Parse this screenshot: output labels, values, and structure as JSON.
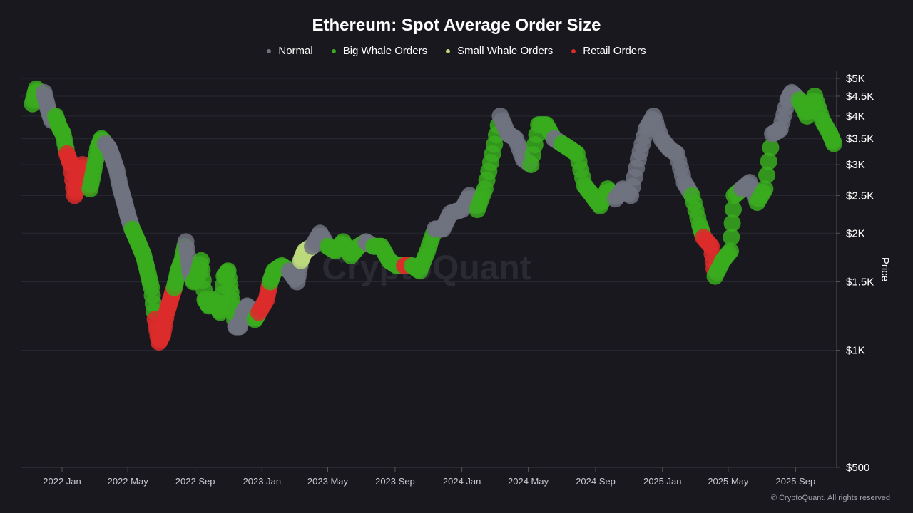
{
  "chart_data": {
    "type": "scatter",
    "title": "Ethereum: Spot Average Order Size",
    "ylabel": "Price",
    "yscale": "log",
    "ylim": [
      500,
      5000
    ],
    "y_ticks": [
      {
        "v": 5000,
        "label": "$5K"
      },
      {
        "v": 4500,
        "label": "$4.5K"
      },
      {
        "v": 4000,
        "label": "$4K"
      },
      {
        "v": 3500,
        "label": "$3.5K"
      },
      {
        "v": 3000,
        "label": "$3K"
      },
      {
        "v": 2500,
        "label": "$2.5K"
      },
      {
        "v": 2000,
        "label": "$2K"
      },
      {
        "v": 1500,
        "label": "$1.5K"
      },
      {
        "v": 1000,
        "label": "$1K"
      },
      {
        "v": 500,
        "label": "$500"
      }
    ],
    "x_ticks": [
      {
        "v": "2022-01-01",
        "label": "2022 Jan"
      },
      {
        "v": "2022-05-01",
        "label": "2022 May"
      },
      {
        "v": "2022-09-01",
        "label": "2022 Sep"
      },
      {
        "v": "2023-01-01",
        "label": "2023 Jan"
      },
      {
        "v": "2023-05-01",
        "label": "2023 May"
      },
      {
        "v": "2023-09-01",
        "label": "2023 Sep"
      },
      {
        "v": "2024-01-01",
        "label": "2024 Jan"
      },
      {
        "v": "2024-05-01",
        "label": "2024 May"
      },
      {
        "v": "2024-09-01",
        "label": "2024 Sep"
      },
      {
        "v": "2025-01-01",
        "label": "2025 Jan"
      },
      {
        "v": "2025-05-01",
        "label": "2025 May"
      },
      {
        "v": "2025-09-01",
        "label": "2025 Sep"
      }
    ],
    "grid": true,
    "legend_position": "top-center",
    "categories": {
      "N": {
        "name": "Normal",
        "color": "#70727f"
      },
      "B": {
        "name": "Big Whale Orders",
        "color": "#3aab1e"
      },
      "S": {
        "name": "Small Whale Orders",
        "color": "#bcd97c"
      },
      "R": {
        "name": "Retail Orders",
        "color": "#dc2b2b"
      }
    },
    "legend_order": [
      "N",
      "B",
      "S",
      "R"
    ],
    "points": [
      [
        "2021-11-08",
        4300,
        "B"
      ],
      [
        "2021-11-15",
        4700,
        "B"
      ],
      [
        "2021-11-22",
        4400,
        "B"
      ],
      [
        "2021-11-29",
        4600,
        "N"
      ],
      [
        "2021-12-06",
        4200,
        "N"
      ],
      [
        "2021-12-13",
        3900,
        "N"
      ],
      [
        "2021-12-20",
        4000,
        "B"
      ],
      [
        "2021-12-27",
        3750,
        "B"
      ],
      [
        "2022-01-03",
        3600,
        "B"
      ],
      [
        "2022-01-10",
        3200,
        "R"
      ],
      [
        "2022-01-17",
        3000,
        "R"
      ],
      [
        "2022-01-24",
        2500,
        "R"
      ],
      [
        "2022-01-31",
        2700,
        "R"
      ],
      [
        "2022-02-07",
        3000,
        "R"
      ],
      [
        "2022-02-14",
        2800,
        "R"
      ],
      [
        "2022-02-21",
        2600,
        "B"
      ],
      [
        "2022-02-28",
        2900,
        "B"
      ],
      [
        "2022-03-07",
        3300,
        "B"
      ],
      [
        "2022-03-14",
        3500,
        "B"
      ],
      [
        "2022-03-21",
        3400,
        "N"
      ],
      [
        "2022-03-28",
        3300,
        "N"
      ],
      [
        "2022-04-04",
        3100,
        "N"
      ],
      [
        "2022-04-11",
        2900,
        "N"
      ],
      [
        "2022-04-18",
        2600,
        "N"
      ],
      [
        "2022-04-25",
        2400,
        "N"
      ],
      [
        "2022-05-02",
        2200,
        "N"
      ],
      [
        "2022-05-09",
        2050,
        "B"
      ],
      [
        "2022-05-16",
        1950,
        "B"
      ],
      [
        "2022-05-23",
        1850,
        "B"
      ],
      [
        "2022-05-30",
        1750,
        "B"
      ],
      [
        "2022-06-06",
        1600,
        "B"
      ],
      [
        "2022-06-13",
        1450,
        "B"
      ],
      [
        "2022-06-20",
        1200,
        "R"
      ],
      [
        "2022-06-27",
        1050,
        "R"
      ],
      [
        "2022-07-04",
        1100,
        "R"
      ],
      [
        "2022-07-11",
        1250,
        "R"
      ],
      [
        "2022-07-18",
        1350,
        "R"
      ],
      [
        "2022-07-25",
        1450,
        "B"
      ],
      [
        "2022-08-01",
        1600,
        "B"
      ],
      [
        "2022-08-08",
        1700,
        "B"
      ],
      [
        "2022-08-15",
        1900,
        "N"
      ],
      [
        "2022-08-22",
        1600,
        "N"
      ],
      [
        "2022-08-29",
        1500,
        "B"
      ],
      [
        "2022-09-05",
        1550,
        "B"
      ],
      [
        "2022-09-12",
        1700,
        "B"
      ],
      [
        "2022-09-19",
        1350,
        "B"
      ],
      [
        "2022-09-26",
        1300,
        "B"
      ],
      [
        "2022-10-03",
        1350,
        "B"
      ],
      [
        "2022-10-10",
        1300,
        "B"
      ],
      [
        "2022-10-17",
        1250,
        "B"
      ],
      [
        "2022-10-24",
        1550,
        "B"
      ],
      [
        "2022-10-31",
        1600,
        "B"
      ],
      [
        "2022-11-07",
        1350,
        "B"
      ],
      [
        "2022-11-14",
        1150,
        "N"
      ],
      [
        "2022-11-21",
        1150,
        "N"
      ],
      [
        "2022-11-28",
        1250,
        "N"
      ],
      [
        "2022-12-05",
        1300,
        "N"
      ],
      [
        "2022-12-12",
        1250,
        "N"
      ],
      [
        "2022-12-19",
        1200,
        "B"
      ],
      [
        "2022-12-26",
        1250,
        "R"
      ],
      [
        "2023-01-09",
        1350,
        "R"
      ],
      [
        "2023-01-16",
        1500,
        "B"
      ],
      [
        "2023-01-23",
        1600,
        "B"
      ],
      [
        "2023-02-06",
        1650,
        "B"
      ],
      [
        "2023-02-20",
        1600,
        "N"
      ],
      [
        "2023-03-06",
        1500,
        "N"
      ],
      [
        "2023-03-13",
        1700,
        "S"
      ],
      [
        "2023-03-20",
        1800,
        "S"
      ],
      [
        "2023-04-03",
        1850,
        "N"
      ],
      [
        "2023-04-17",
        2000,
        "N"
      ],
      [
        "2023-05-01",
        1850,
        "B"
      ],
      [
        "2023-05-15",
        1800,
        "B"
      ],
      [
        "2023-05-29",
        1900,
        "B"
      ],
      [
        "2023-06-12",
        1750,
        "B"
      ],
      [
        "2023-06-26",
        1850,
        "B"
      ],
      [
        "2023-07-10",
        1900,
        "N"
      ],
      [
        "2023-07-24",
        1850,
        "B"
      ],
      [
        "2023-08-07",
        1850,
        "B"
      ],
      [
        "2023-08-21",
        1700,
        "B"
      ],
      [
        "2023-09-04",
        1650,
        "B"
      ],
      [
        "2023-09-18",
        1650,
        "R"
      ],
      [
        "2023-10-02",
        1650,
        "B"
      ],
      [
        "2023-10-16",
        1600,
        "B"
      ],
      [
        "2023-10-30",
        1800,
        "B"
      ],
      [
        "2023-11-13",
        2050,
        "N"
      ],
      [
        "2023-11-27",
        2050,
        "N"
      ],
      [
        "2023-12-11",
        2250,
        "N"
      ],
      [
        "2024-01-01",
        2300,
        "N"
      ],
      [
        "2024-01-15",
        2500,
        "N"
      ],
      [
        "2024-01-29",
        2300,
        "B"
      ],
      [
        "2024-02-12",
        2600,
        "B"
      ],
      [
        "2024-02-26",
        3200,
        "B"
      ],
      [
        "2024-03-11",
        4000,
        "N"
      ],
      [
        "2024-03-25",
        3600,
        "N"
      ],
      [
        "2024-04-08",
        3500,
        "N"
      ],
      [
        "2024-04-22",
        3100,
        "N"
      ],
      [
        "2024-05-06",
        3000,
        "B"
      ],
      [
        "2024-05-20",
        3800,
        "B"
      ],
      [
        "2024-06-03",
        3800,
        "B"
      ],
      [
        "2024-06-17",
        3500,
        "N"
      ],
      [
        "2024-07-01",
        3400,
        "B"
      ],
      [
        "2024-07-15",
        3300,
        "B"
      ],
      [
        "2024-07-29",
        3200,
        "B"
      ],
      [
        "2024-08-12",
        2650,
        "B"
      ],
      [
        "2024-08-26",
        2500,
        "B"
      ],
      [
        "2024-09-09",
        2350,
        "B"
      ],
      [
        "2024-09-23",
        2600,
        "B"
      ],
      [
        "2024-10-07",
        2450,
        "N"
      ],
      [
        "2024-10-21",
        2600,
        "N"
      ],
      [
        "2024-11-04",
        2500,
        "N"
      ],
      [
        "2024-11-18",
        3100,
        "N"
      ],
      [
        "2024-12-02",
        3700,
        "N"
      ],
      [
        "2024-12-16",
        4000,
        "N"
      ],
      [
        "2024-12-30",
        3500,
        "N"
      ],
      [
        "2025-01-13",
        3300,
        "N"
      ],
      [
        "2025-01-27",
        3200,
        "N"
      ],
      [
        "2025-02-10",
        2700,
        "N"
      ],
      [
        "2025-02-24",
        2500,
        "B"
      ],
      [
        "2025-03-10",
        2100,
        "B"
      ],
      [
        "2025-03-17",
        1950,
        "R"
      ],
      [
        "2025-03-31",
        1850,
        "R"
      ],
      [
        "2025-04-07",
        1550,
        "B"
      ],
      [
        "2025-04-21",
        1700,
        "B"
      ],
      [
        "2025-05-05",
        1800,
        "B"
      ],
      [
        "2025-05-12",
        2500,
        "B"
      ],
      [
        "2025-05-26",
        2600,
        "N"
      ],
      [
        "2025-06-09",
        2700,
        "N"
      ],
      [
        "2025-06-23",
        2400,
        "B"
      ],
      [
        "2025-07-07",
        2600,
        "B"
      ],
      [
        "2025-07-21",
        3600,
        "N"
      ],
      [
        "2025-08-04",
        3700,
        "N"
      ],
      [
        "2025-08-18",
        4400,
        "N"
      ],
      [
        "2025-08-25",
        4600,
        "N"
      ],
      [
        "2025-09-08",
        4400,
        "B"
      ],
      [
        "2025-09-22",
        4000,
        "B"
      ],
      [
        "2025-10-06",
        4500,
        "B"
      ],
      [
        "2025-10-20",
        3900,
        "B"
      ],
      [
        "2025-11-03",
        3600,
        "B"
      ],
      [
        "2025-11-10",
        3400,
        "B"
      ]
    ],
    "watermark": "CryptoQuant"
  },
  "footer": {
    "copyright": "© CryptoQuant. All rights reserved"
  }
}
